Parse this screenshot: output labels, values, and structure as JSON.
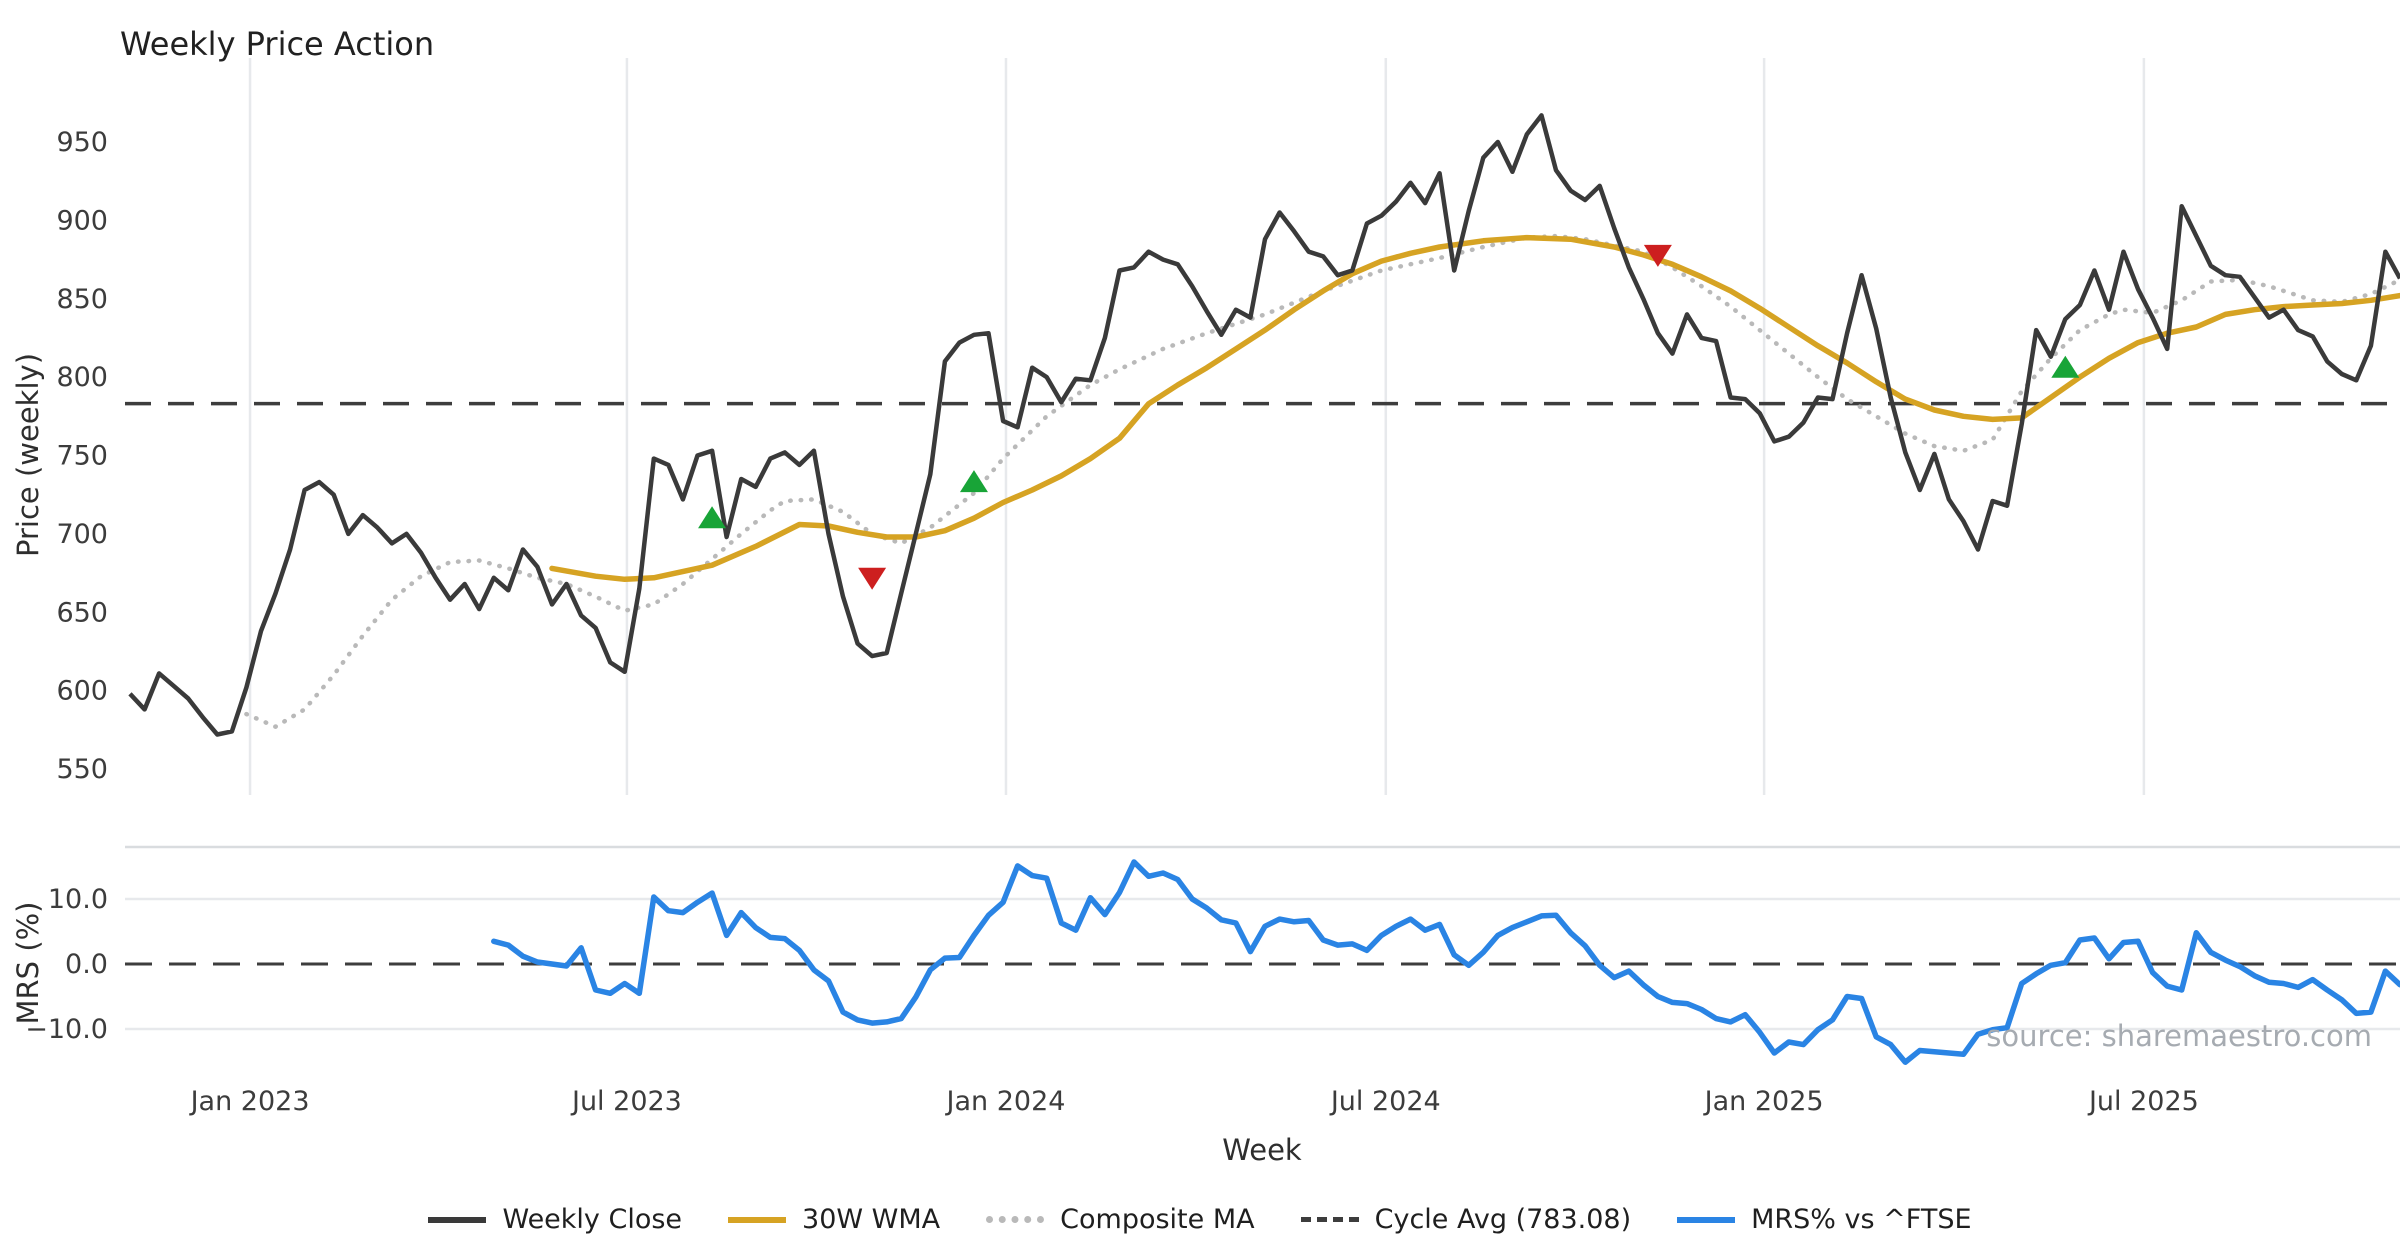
{
  "title": "Weekly Price Action",
  "source_note": "source: sharemaestro.com",
  "colors": {
    "close": "#3a3a3a",
    "wma": "#d6a323",
    "composite": "#b9b9b9",
    "cycle": "#3d3d3d",
    "mrs": "#2a84e4",
    "grid": "#e7e9ec",
    "spine": "#d9dcdf",
    "signal_up": "#18a437",
    "signal_down": "#cd1f1f"
  },
  "chart_data": {
    "type": "line",
    "title": "Weekly Price Action",
    "grid": "vertical-months-main, horizontal-lower",
    "legend_position": "bottom-center",
    "x_axis": {
      "label": "Week",
      "ticks": [
        {
          "week": 8.25,
          "label": "Jan 2023"
        },
        {
          "week": 34.15,
          "label": "Jul 2023"
        },
        {
          "week": 60.2,
          "label": "Jan 2024"
        },
        {
          "week": 86.3,
          "label": "Jul 2024"
        },
        {
          "week": 112.3,
          "label": "Jan 2025"
        },
        {
          "week": 138.4,
          "label": "Jul 2025"
        }
      ]
    },
    "main_panel": {
      "ylabel": "Price (weekly)",
      "yticks": [
        550,
        600,
        650,
        700,
        750,
        800,
        850,
        900,
        950
      ],
      "ylim": [
        535,
        985
      ],
      "cycle_avg": 783.08,
      "series": [
        {
          "name": "Weekly Close",
          "style": "solid-dark",
          "start_week": 0,
          "values": [
            598,
            588,
            611,
            603,
            595,
            583,
            572,
            574,
            602,
            638,
            662,
            690,
            728,
            733,
            725,
            700,
            712,
            704,
            694,
            700,
            688,
            672,
            658,
            668,
            652,
            672,
            664,
            690,
            679,
            655,
            668,
            648,
            640,
            618,
            612,
            665,
            748,
            744,
            722,
            750,
            753,
            698,
            735,
            730,
            748,
            752,
            744,
            753,
            700,
            660,
            630,
            622,
            624,
            662,
            700,
            738,
            810,
            822,
            827,
            828,
            772,
            768,
            806,
            800,
            784,
            799,
            798,
            825,
            868,
            870,
            880,
            875,
            872,
            858,
            842,
            827,
            843,
            838,
            888,
            905,
            893,
            880,
            877,
            865,
            868,
            898,
            903,
            912,
            924,
            911,
            930,
            868,
            906,
            940,
            950,
            931,
            955,
            967,
            932,
            919,
            913,
            922,
            895,
            870,
            850,
            828,
            815,
            840,
            825,
            823,
            787,
            786,
            777,
            759,
            762,
            771,
            787,
            786,
            828,
            865,
            831,
            787,
            752,
            728,
            751,
            722,
            708,
            690,
            721,
            718,
            770,
            830,
            813,
            837,
            846,
            868,
            843,
            880,
            856,
            838,
            818,
            909,
            890,
            871,
            865,
            864,
            851,
            838,
            843,
            830,
            826,
            810,
            802,
            798,
            820,
            880,
            863
          ]
        },
        {
          "name": "30W WMA",
          "style": "solid-gold",
          "points": [
            [
              29,
              678
            ],
            [
              32,
              673
            ],
            [
              34,
              671
            ],
            [
              36,
              672
            ],
            [
              40,
              680
            ],
            [
              43,
              692
            ],
            [
              46,
              706
            ],
            [
              48,
              705
            ],
            [
              50,
              701
            ],
            [
              52,
              698
            ],
            [
              54,
              698
            ],
            [
              56,
              702
            ],
            [
              58,
              710
            ],
            [
              60,
              720
            ],
            [
              62,
              728
            ],
            [
              64,
              737
            ],
            [
              66,
              748
            ],
            [
              68,
              761
            ],
            [
              70,
              783
            ],
            [
              72,
              795
            ],
            [
              74,
              806
            ],
            [
              76,
              818
            ],
            [
              78,
              830
            ],
            [
              80,
              843
            ],
            [
              82,
              855
            ],
            [
              84,
              866
            ],
            [
              86,
              874
            ],
            [
              88,
              879
            ],
            [
              90,
              883
            ],
            [
              93,
              887
            ],
            [
              96,
              889
            ],
            [
              99,
              888
            ],
            [
              102,
              883
            ],
            [
              104,
              878
            ],
            [
              106,
              872
            ],
            [
              108,
              864
            ],
            [
              110,
              855
            ],
            [
              112,
              844
            ],
            [
              114,
              832
            ],
            [
              116,
              820
            ],
            [
              118,
              809
            ],
            [
              120,
              797
            ],
            [
              122,
              786
            ],
            [
              124,
              779
            ],
            [
              126,
              775
            ],
            [
              128,
              773
            ],
            [
              130,
              774
            ],
            [
              132,
              787
            ],
            [
              134,
              800
            ],
            [
              136,
              812
            ],
            [
              138,
              822
            ],
            [
              140,
              828
            ],
            [
              142,
              832
            ],
            [
              144,
              840
            ],
            [
              146,
              843
            ],
            [
              148,
              845
            ],
            [
              150,
              846
            ],
            [
              152,
              847
            ],
            [
              154,
              849
            ],
            [
              156,
              852
            ]
          ]
        },
        {
          "name": "Composite MA",
          "style": "dotted-gray",
          "points": [
            [
              8,
              585
            ],
            [
              10,
              577
            ],
            [
              12,
              588
            ],
            [
              14,
              610
            ],
            [
              16,
              635
            ],
            [
              18,
              658
            ],
            [
              20,
              673
            ],
            [
              22,
              682
            ],
            [
              24,
              683
            ],
            [
              26,
              678
            ],
            [
              28,
              672
            ],
            [
              30,
              668
            ],
            [
              32,
              660
            ],
            [
              34,
              651
            ],
            [
              36,
              655
            ],
            [
              38,
              668
            ],
            [
              40,
              684
            ],
            [
              42,
              700
            ],
            [
              44,
              715
            ],
            [
              45,
              721
            ],
            [
              47,
              722
            ],
            [
              49,
              714
            ],
            [
              51,
              700
            ],
            [
              53,
              694
            ],
            [
              55,
              704
            ],
            [
              58,
              726
            ],
            [
              60,
              748
            ],
            [
              63,
              775
            ],
            [
              66,
              795
            ],
            [
              68,
              805
            ],
            [
              71,
              818
            ],
            [
              74,
              828
            ],
            [
              78,
              840
            ],
            [
              82,
              855
            ],
            [
              86,
              868
            ],
            [
              90,
              876
            ],
            [
              93,
              883
            ],
            [
              96,
              889
            ],
            [
              98,
              890
            ],
            [
              100,
              888
            ],
            [
              102,
              884
            ],
            [
              104,
              880
            ],
            [
              106,
              870
            ],
            [
              108,
              858
            ],
            [
              110,
              845
            ],
            [
              112,
              830
            ],
            [
              114,
              815
            ],
            [
              116,
              800
            ],
            [
              118,
              786
            ],
            [
              120,
              775
            ],
            [
              122,
              764
            ],
            [
              124,
              756
            ],
            [
              126,
              753
            ],
            [
              128,
              760
            ],
            [
              130,
              791
            ],
            [
              132,
              812
            ],
            [
              134,
              830
            ],
            [
              136,
              840
            ],
            [
              137,
              843
            ],
            [
              139,
              841
            ],
            [
              141,
              849
            ],
            [
              143,
              861
            ],
            [
              145,
              862
            ],
            [
              147,
              858
            ],
            [
              150,
              849
            ],
            [
              152,
              848
            ],
            [
              154,
              853
            ],
            [
              156,
              862
            ]
          ]
        }
      ],
      "signals": [
        {
          "week": 40,
          "value": 710,
          "type": "buy"
        },
        {
          "week": 51,
          "value": 672,
          "type": "sell"
        },
        {
          "week": 58,
          "value": 733,
          "type": "buy"
        },
        {
          "week": 105,
          "value": 878,
          "type": "sell"
        },
        {
          "week": 133,
          "value": 806,
          "type": "buy"
        }
      ]
    },
    "lower_panel": {
      "ylabel": "MRS (%)",
      "yticks": [
        {
          "value": 10,
          "label": "10.0"
        },
        {
          "value": 0,
          "label": "0.0"
        },
        {
          "value": -10,
          "label": "−10.0"
        }
      ],
      "zero_line": 0,
      "series": {
        "name": "MRS% vs ^FTSE",
        "style": "solid-blue",
        "start_week": 25,
        "values": [
          3.5,
          2.9,
          1.2,
          0.3,
          0.0,
          -0.3,
          2.5,
          -4.0,
          -4.5,
          -3.0,
          -4.5,
          10.3,
          8.2,
          7.9,
          9.5,
          10.9,
          4.4,
          7.9,
          5.6,
          4.1,
          3.9,
          2.1,
          -0.9,
          -2.6,
          -7.4,
          -8.6,
          -9.1,
          -8.9,
          -8.4,
          -5.1,
          -0.9,
          0.9,
          1.0,
          4.4,
          7.5,
          9.5,
          15.1,
          13.6,
          13.2,
          6.3,
          5.2,
          10.2,
          7.6,
          11.0,
          15.7,
          13.5,
          14.0,
          13.0,
          10.0,
          8.6,
          6.8,
          6.3,
          1.9,
          5.8,
          6.9,
          6.5,
          6.7,
          3.7,
          2.9,
          3.1,
          2.1,
          4.4,
          5.8,
          6.9,
          5.2,
          6.1,
          1.4,
          -0.2,
          1.8,
          4.4,
          5.6,
          6.5,
          7.4,
          7.5,
          4.8,
          2.8,
          -0.2,
          -2.1,
          -1.1,
          -3.2,
          -5.0,
          -5.9,
          -6.1,
          -7.0,
          -8.4,
          -8.9,
          -7.8,
          -10.5,
          -13.7,
          -12.0,
          -12.4,
          -10.1,
          -8.6,
          -5.0,
          -5.3,
          -11.2,
          -12.4,
          -15.1,
          -13.3,
          -13.5,
          -13.7,
          -13.9,
          -10.8,
          -10.1,
          -9.8,
          -3.0,
          -1.5,
          -0.2,
          0.2,
          3.7,
          4.0,
          0.8,
          3.3,
          3.5,
          -1.3,
          -3.4,
          -4.0,
          4.8,
          1.8,
          0.6,
          -0.4,
          -1.8,
          -2.8,
          -3.0,
          -3.6,
          -2.4,
          -4.0,
          -5.5,
          -7.6,
          -7.4,
          -1.1,
          -3.2
        ]
      }
    },
    "legend": [
      {
        "key": "close",
        "label": "Weekly Close"
      },
      {
        "key": "wma",
        "label": "30W WMA"
      },
      {
        "key": "composite",
        "label": "Composite MA"
      },
      {
        "key": "cycle",
        "label": "Cycle Avg (783.08)"
      },
      {
        "key": "mrs",
        "label": "MRS% vs ^FTSE"
      }
    ]
  }
}
